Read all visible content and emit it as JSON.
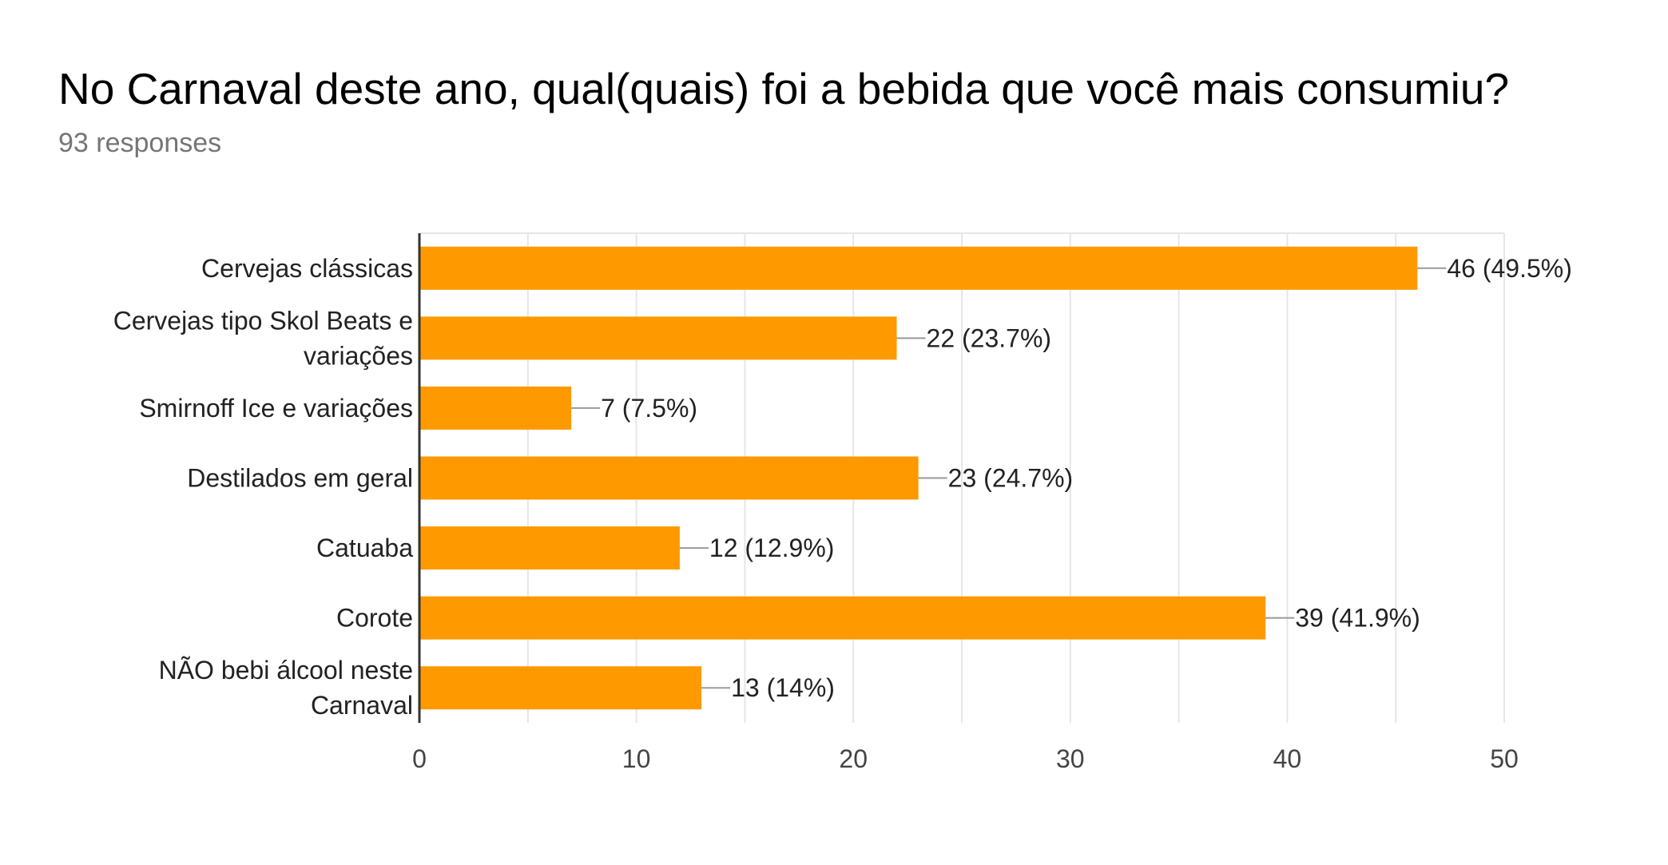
{
  "title": "No Carnaval deste ano, qual(quais) foi a bebida que você mais consumiu?",
  "subtitle": "93 responses",
  "colors": {
    "bar": "#FF9900",
    "grid": "#e6e6e6",
    "axis": "#333333",
    "leader": "#999999"
  },
  "chart_data": {
    "type": "bar",
    "orientation": "horizontal",
    "title": "No Carnaval deste ano, qual(quais) foi a bebida que você mais consumiu?",
    "subtitle": "93 responses",
    "categories": [
      [
        "Cervejas clássicas"
      ],
      [
        "Cervejas tipo Skol Beats e",
        "variações"
      ],
      [
        "Smirnoff Ice e variações"
      ],
      [
        "Destilados em geral"
      ],
      [
        "Catuaba"
      ],
      [
        "Corote"
      ],
      [
        "NÃO bebi álcool neste",
        "Carnaval"
      ]
    ],
    "values": [
      46,
      22,
      7,
      23,
      12,
      39,
      13
    ],
    "value_labels": [
      "46 (49.5%)",
      "22 (23.7%)",
      "7 (7.5%)",
      "23 (24.7%)",
      "12 (12.9%)",
      "39 (41.9%)",
      "13 (14%)"
    ],
    "xlim": [
      0,
      50
    ],
    "xticks": [
      0,
      10,
      20,
      30,
      40,
      50
    ],
    "xlabel": "",
    "ylabel": "",
    "grid": true,
    "legend": "none"
  }
}
